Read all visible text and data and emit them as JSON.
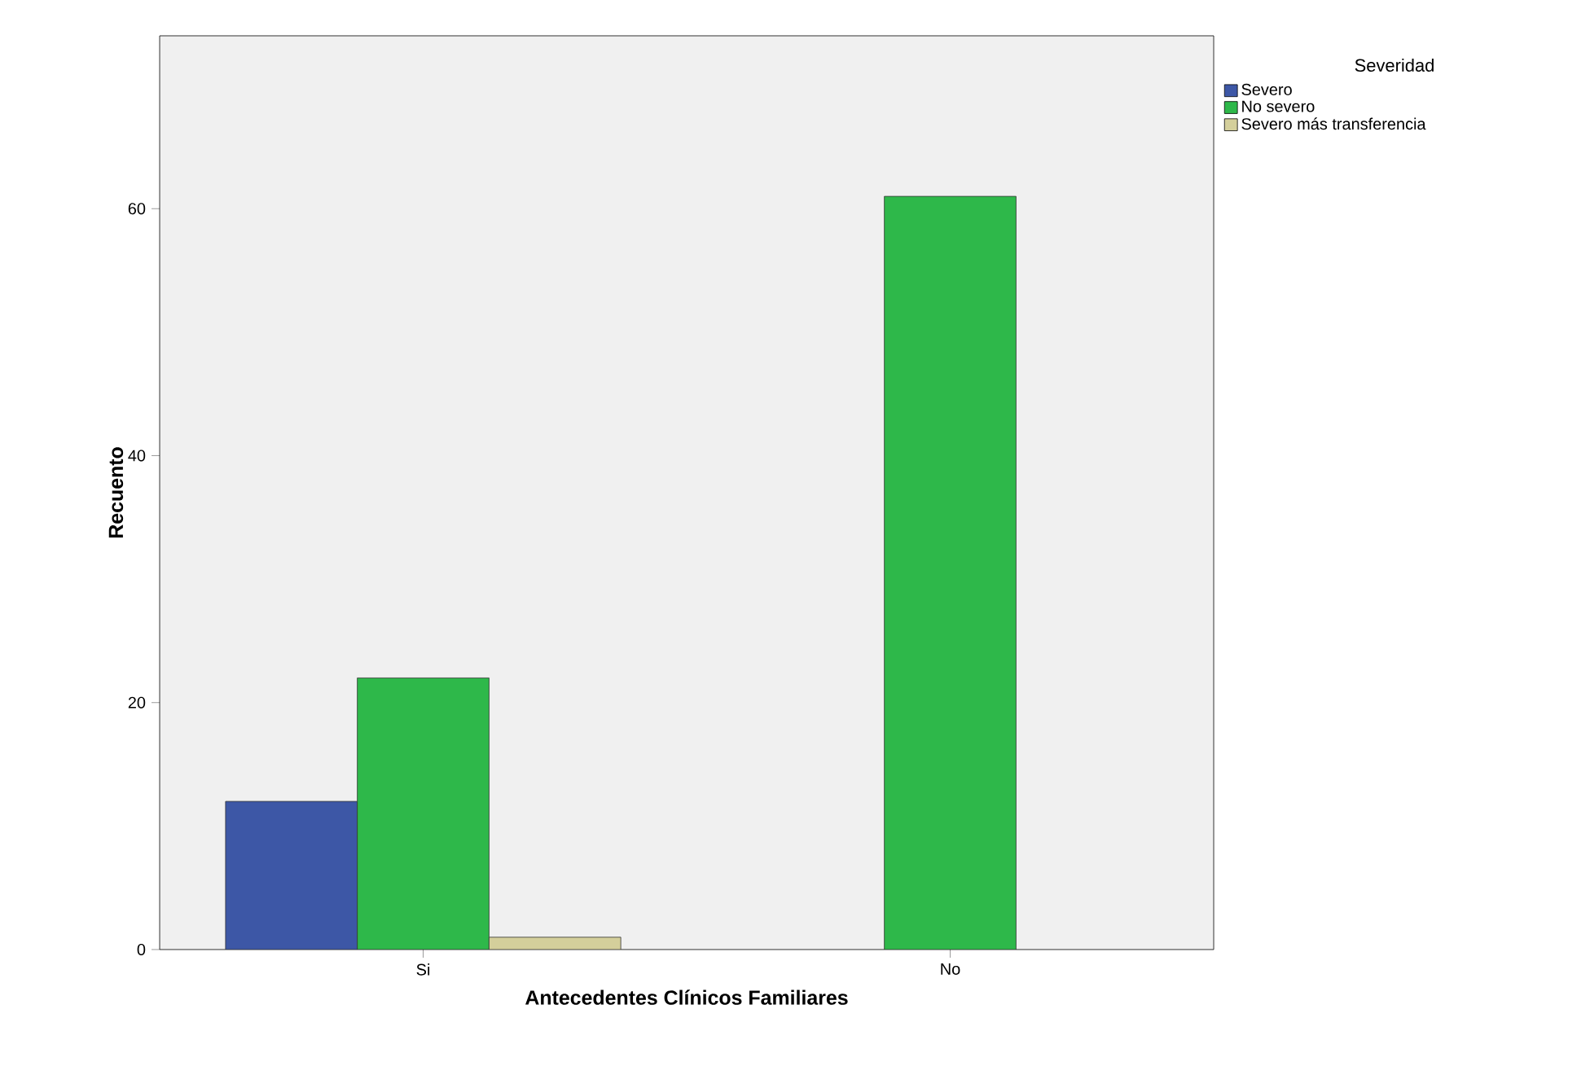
{
  "chart_data": {
    "type": "bar",
    "xlabel": "Antecedentes Clínicos Familiares",
    "ylabel": "Recuento",
    "legend_title": "Severidad",
    "categories": [
      "Si",
      "No"
    ],
    "series": [
      {
        "name": "Severo",
        "color": "#3d57a6",
        "values": [
          12,
          null
        ]
      },
      {
        "name": "No severo",
        "color": "#2eb84a",
        "values": [
          22,
          61
        ]
      },
      {
        "name": "Severo más transferencia",
        "color": "#d4cf9b",
        "values": [
          1,
          null
        ]
      }
    ],
    "ylim": [
      0,
      74
    ],
    "yticks": [
      0,
      20,
      40,
      60
    ],
    "legend": "top right",
    "grid": false
  }
}
